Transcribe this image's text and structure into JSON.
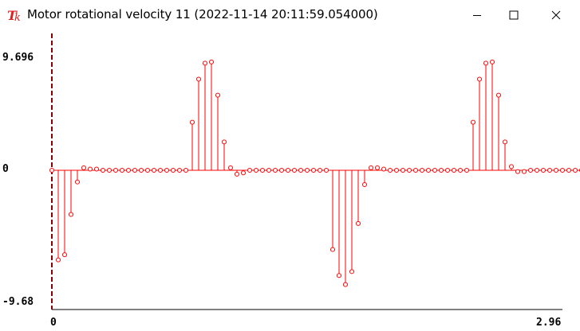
{
  "window": {
    "title": "Motor rotational velocity 11 (2022-11-14 20:11:59.054000)",
    "icon": "tk-feather-icon",
    "controls": [
      "minimize-icon",
      "maximize-icon",
      "close-icon"
    ]
  },
  "colors": {
    "signal": "#ff0000",
    "axis": "#000000",
    "y_axis": "#8b0000"
  },
  "chart_data": {
    "type": "stem",
    "title": "",
    "xlabel": "",
    "ylabel": "",
    "x_tick_labels": [
      "0",
      "2.96"
    ],
    "y_tick_labels": [
      "9.696",
      "0",
      "-9.68"
    ],
    "xlim": [
      0,
      2.96
    ],
    "ylim": [
      -9.68,
      9.696
    ],
    "grid": false,
    "legend": "none",
    "x_step": 0.037,
    "values": [
      0,
      -6.9,
      -6.5,
      -3.4,
      -0.9,
      0.2,
      0.1,
      0.1,
      0,
      0,
      0,
      0,
      0,
      0,
      0,
      0,
      0,
      0,
      0,
      0,
      0,
      0,
      3.9,
      7.4,
      8.7,
      8.8,
      6.1,
      2.3,
      0.2,
      -0.3,
      -0.2,
      0,
      0,
      0,
      0,
      0,
      0,
      0,
      0,
      0,
      0,
      0,
      0,
      0,
      -6.1,
      -8.1,
      -8.8,
      -7.8,
      -4.1,
      -1.1,
      0.2,
      0.2,
      0.1,
      0,
      0,
      0,
      0,
      0,
      0,
      0,
      0,
      0,
      0,
      0,
      0,
      0,
      3.9,
      7.4,
      8.7,
      8.8,
      6.1,
      2.3,
      0.3,
      -0.1,
      -0.1,
      0,
      0,
      0,
      0,
      0,
      0,
      0,
      0,
      0,
      0,
      0,
      0
    ]
  }
}
